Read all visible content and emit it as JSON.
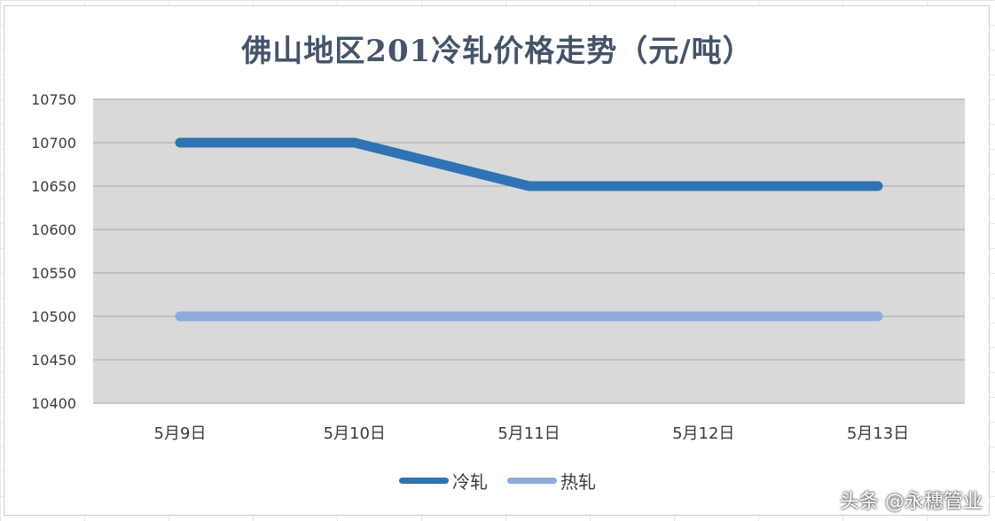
{
  "chart_data": {
    "type": "line",
    "title": "佛山地区201冷轧价格走势（元/吨）",
    "categories": [
      "5月9日",
      "5月10日",
      "5月11日",
      "5月12日",
      "5月13日"
    ],
    "series": [
      {
        "name": "冷轧",
        "values": [
          10700,
          10700,
          10650,
          10650,
          10650
        ],
        "color": "#2e74b5"
      },
      {
        "name": "热轧",
        "values": [
          10500,
          10500,
          10500,
          10500,
          10500
        ],
        "color": "#8faadc"
      }
    ],
    "ylim": [
      10400,
      10750
    ],
    "yticks": [
      10400,
      10450,
      10500,
      10550,
      10600,
      10650,
      10700,
      10750
    ],
    "grid": true,
    "legend": "bottom",
    "plot_background": "#d9d9d9"
  },
  "watermark": "头条 @永穗管业"
}
